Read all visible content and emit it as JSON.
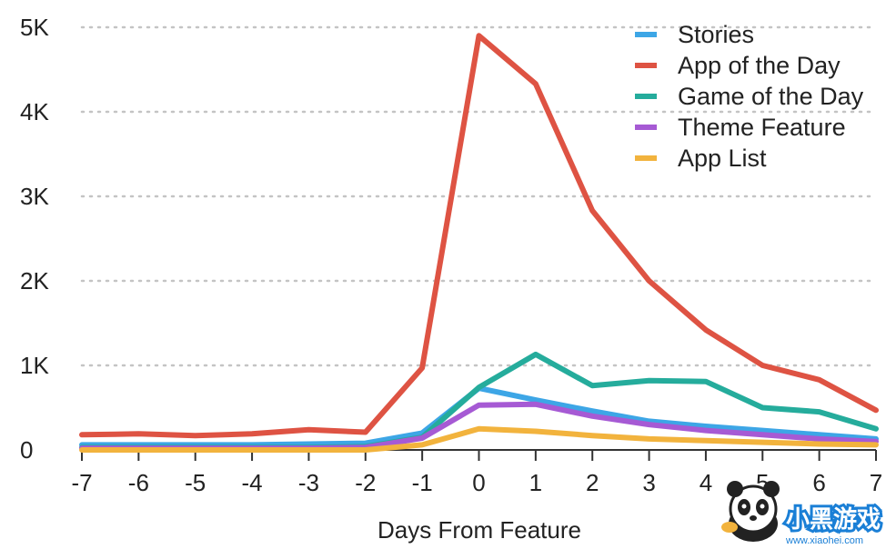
{
  "chart_data": {
    "type": "line",
    "title": "",
    "xlabel": "Days From Feature",
    "ylabel": "",
    "x": [
      -7,
      -6,
      -5,
      -4,
      -3,
      -2,
      -1,
      0,
      1,
      2,
      3,
      4,
      5,
      6,
      7
    ],
    "x_tick_labels": [
      "-7",
      "-6",
      "-5",
      "-4",
      "-3",
      "-2",
      "-1",
      "0",
      "1",
      "2",
      "3",
      "4",
      "5",
      "6",
      "7"
    ],
    "y_ticks": [
      0,
      1000,
      2000,
      3000,
      4000,
      5000
    ],
    "y_tick_labels": [
      "0",
      "1K",
      "2K",
      "3K",
      "4K",
      "5K"
    ],
    "xlim": [
      -7,
      7
    ],
    "ylim": [
      0,
      5000
    ],
    "grid": "horizontal dotted",
    "legend_position": "top-right",
    "series": [
      {
        "name": "Stories",
        "color": "#3DA6E6",
        "values": [
          60,
          60,
          60,
          60,
          70,
          80,
          200,
          730,
          590,
          460,
          340,
          280,
          230,
          180,
          130
        ]
      },
      {
        "name": "App of the Day",
        "color": "#DE5343",
        "values": [
          180,
          190,
          170,
          190,
          240,
          210,
          970,
          4900,
          4330,
          2830,
          2000,
          1420,
          1000,
          830,
          470
        ]
      },
      {
        "name": "Game of the Day",
        "color": "#25AC9C",
        "values": [
          30,
          30,
          30,
          30,
          30,
          40,
          150,
          740,
          1130,
          760,
          820,
          810,
          500,
          450,
          250
        ]
      },
      {
        "name": "Theme Feature",
        "color": "#A65AD4",
        "values": [
          20,
          20,
          20,
          20,
          20,
          30,
          140,
          530,
          540,
          400,
          300,
          230,
          180,
          130,
          100
        ]
      },
      {
        "name": "App List",
        "color": "#F2B33D",
        "values": [
          0,
          0,
          0,
          0,
          0,
          0,
          60,
          250,
          220,
          170,
          130,
          110,
          90,
          70,
          60
        ]
      }
    ]
  },
  "watermark": {
    "brand_text": "小黑游戏",
    "url_text": "www.xiaohei.com"
  }
}
